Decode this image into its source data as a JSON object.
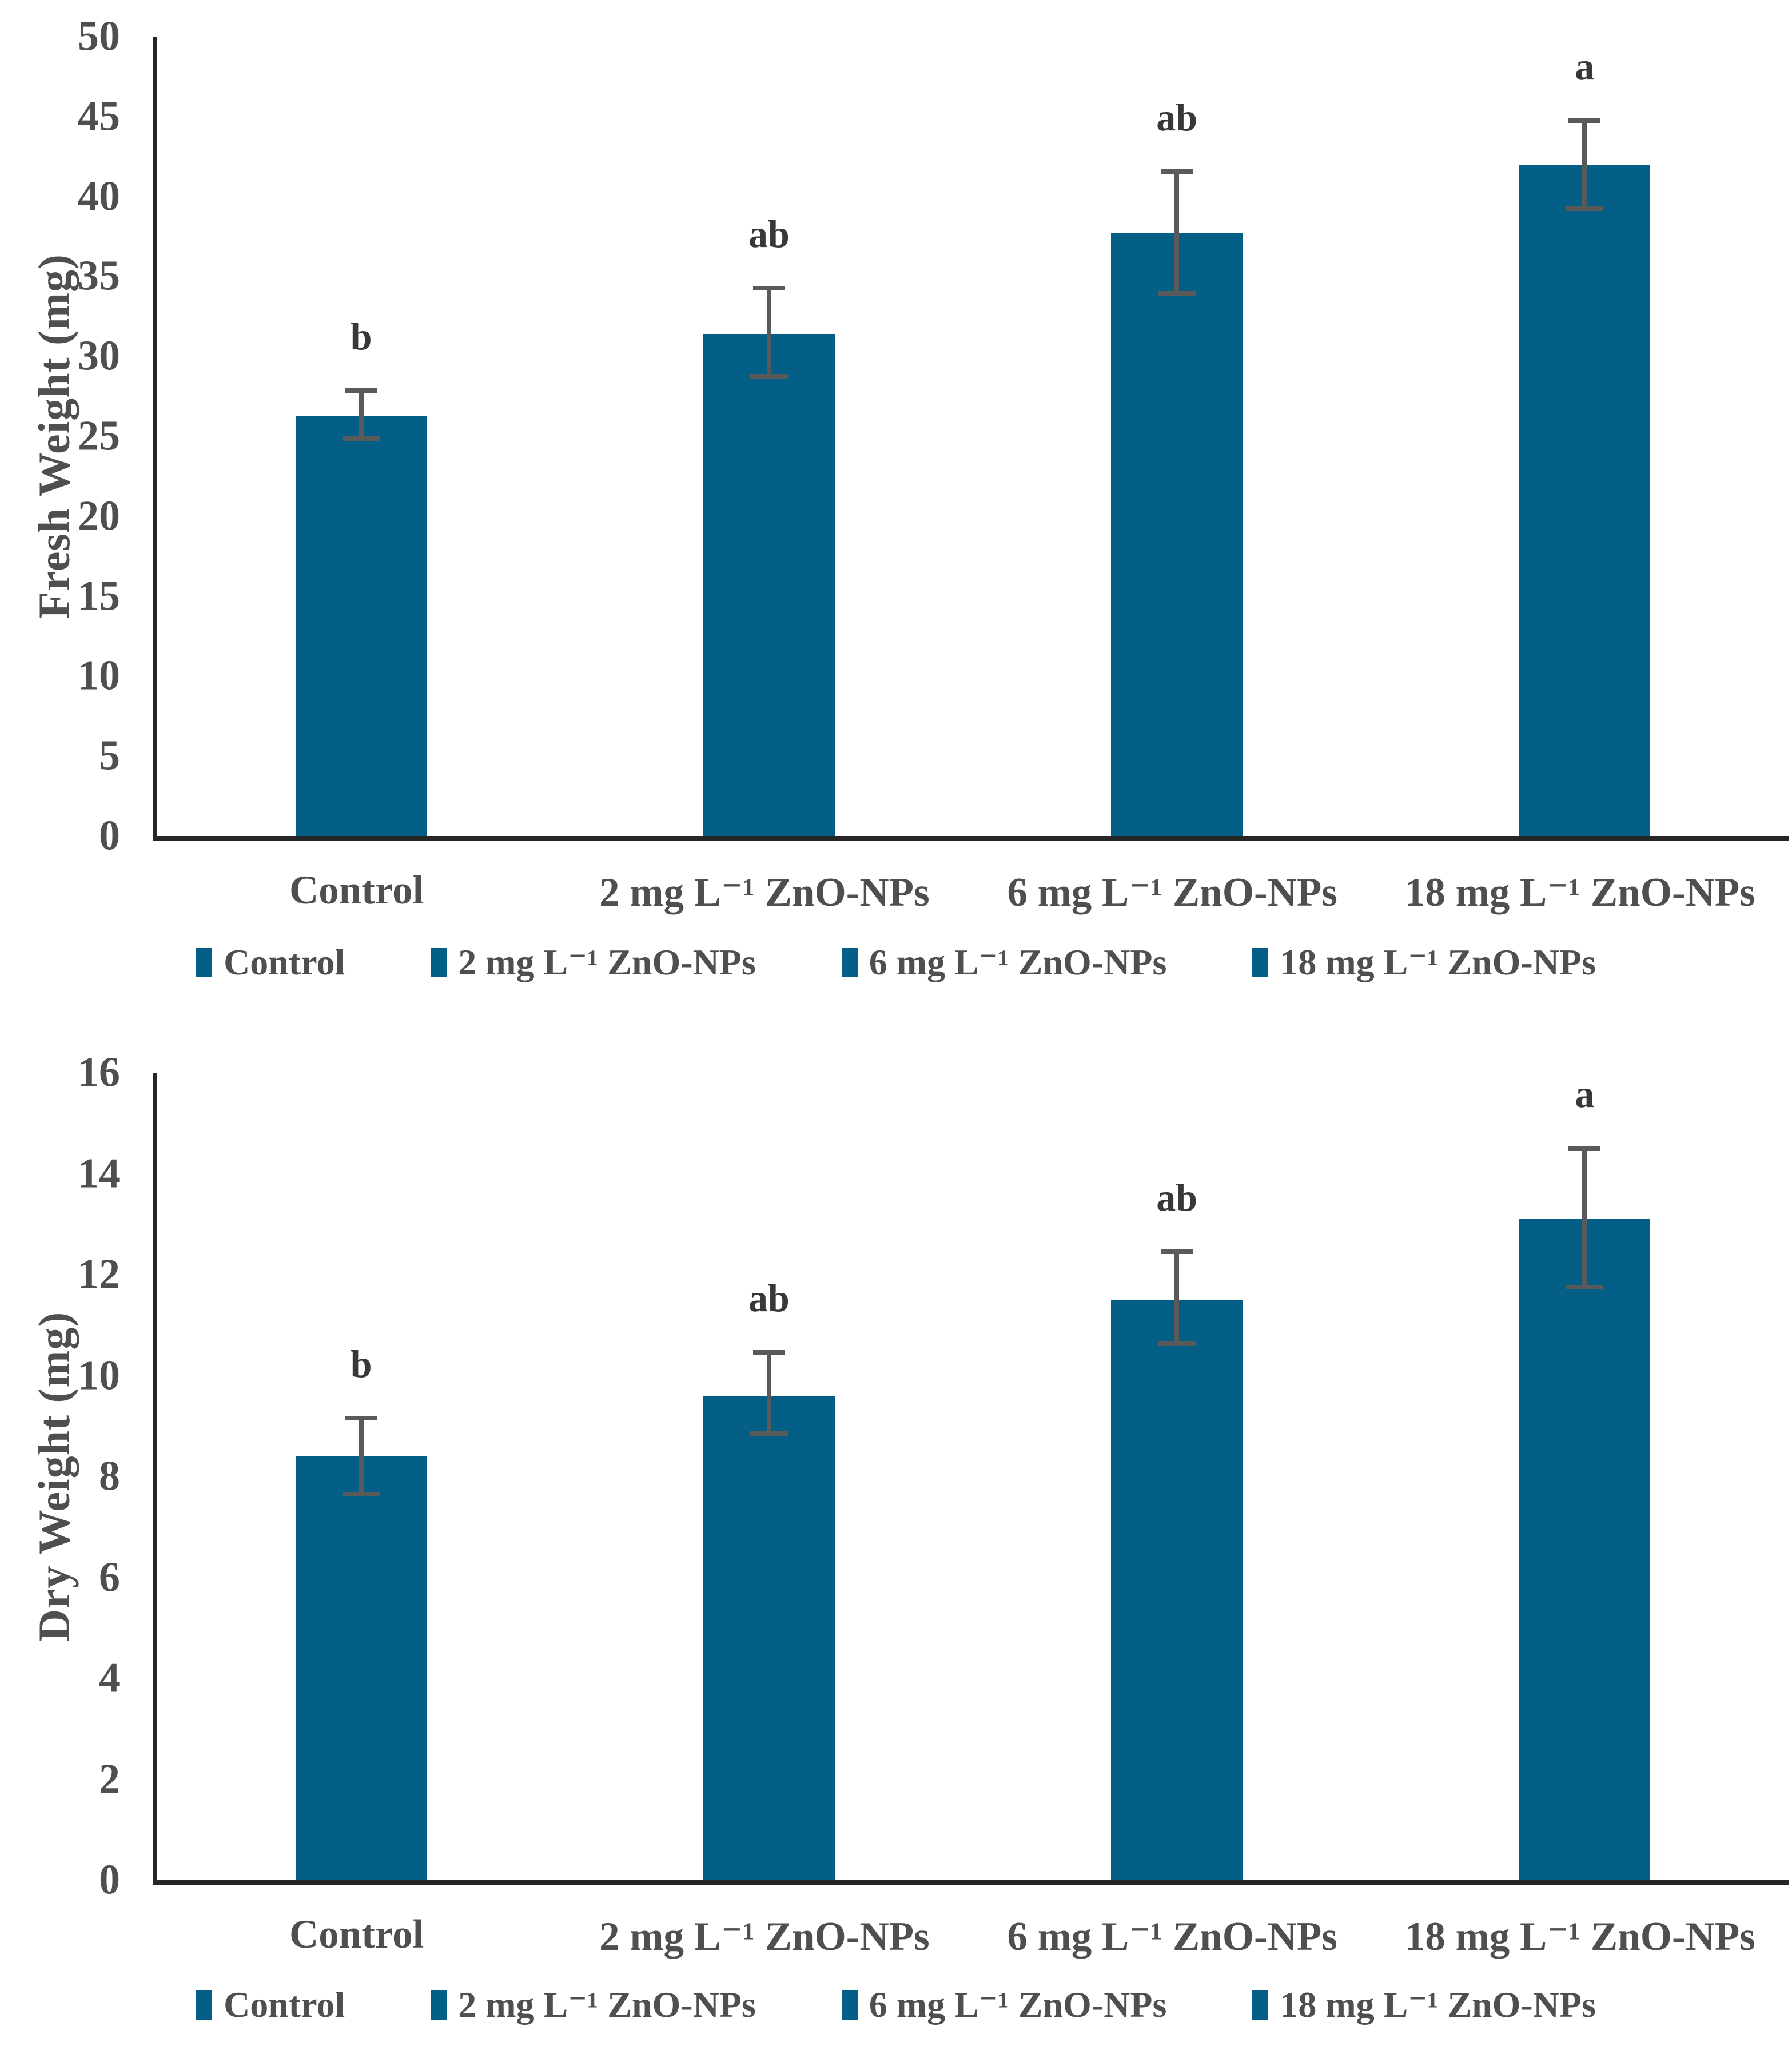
{
  "chart_data": [
    {
      "type": "bar",
      "title": "",
      "ylabel": "Fresh Weight (mg)",
      "xlabel": "",
      "categories": [
        "Control",
        "2 mg L⁻¹ ZnO-NPs",
        "6 mg L⁻¹ ZnO-NPs",
        "18 mg L⁻¹ ZnO-NPs"
      ],
      "values": [
        26.3,
        31.4,
        37.7,
        42.0
      ],
      "error_up": [
        1.7,
        3.0,
        4.0,
        2.9
      ],
      "error_down": [
        1.6,
        2.8,
        3.9,
        2.9
      ],
      "sig_letters": [
        "b",
        "ab",
        "ab",
        "a"
      ],
      "ylim": [
        0,
        50
      ],
      "yticks": [
        0,
        5,
        10,
        15,
        20,
        25,
        30,
        35,
        40,
        45,
        50
      ],
      "legend": [
        "Control",
        "2 mg L⁻¹ ZnO-NPs",
        "6 mg L⁻¹ ZnO-NPs",
        "18 mg L⁻¹ ZnO-NPs"
      ],
      "legend_position": "bottom",
      "grid": false,
      "bar_color": "#045f86"
    },
    {
      "type": "bar",
      "title": "",
      "ylabel": "Dry Weight (mg)",
      "xlabel": "",
      "categories": [
        "Control",
        "2 mg L⁻¹ ZnO-NPs",
        "6 mg L⁻¹ ZnO-NPs",
        "18 mg L⁻¹ ZnO-NPs"
      ],
      "values": [
        8.4,
        9.6,
        11.5,
        13.1
      ],
      "error_up": [
        0.8,
        0.9,
        1.0,
        1.45
      ],
      "error_down": [
        0.8,
        0.8,
        0.9,
        1.4
      ],
      "sig_letters": [
        "b",
        "ab",
        "ab",
        "a"
      ],
      "ylim": [
        0,
        16
      ],
      "yticks": [
        0,
        2,
        4,
        6,
        8,
        10,
        12,
        14,
        16
      ],
      "legend": [
        "Control",
        "2 mg L⁻¹ ZnO-NPs",
        "6 mg L⁻¹ ZnO-NPs",
        "18 mg L⁻¹ ZnO-NPs"
      ],
      "legend_position": "bottom",
      "grid": false,
      "bar_color": "#045f86"
    }
  ],
  "colors": {
    "bar": "#045f86",
    "error_bar": "#5a5a5a",
    "axis_line": "#262626",
    "axis_text": "#4f4f4f",
    "sig_letter": "#383838",
    "background": "#ffffff"
  }
}
